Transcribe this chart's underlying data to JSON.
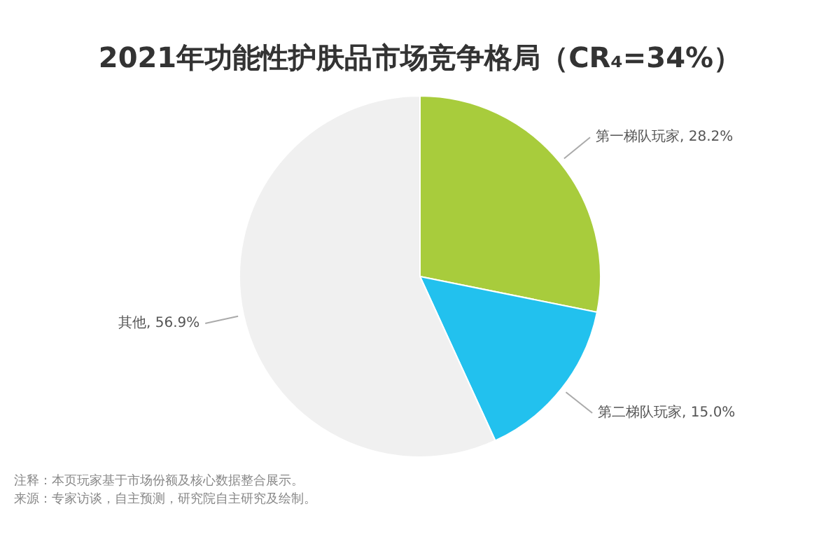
{
  "chart_data": {
    "type": "pie",
    "title": "2021年功能性护肤品市场竞争格局（CR₄=34%）",
    "categories": [
      "第一梯队玩家",
      "第二梯队玩家",
      "其他"
    ],
    "values": [
      28.2,
      15.0,
      56.9
    ],
    "value_labels": [
      "28.2%",
      "15.0%",
      "56.9%"
    ],
    "colors": [
      "#a8cc3c",
      "#22c1ee",
      "#f0f0f0"
    ],
    "legend": false,
    "annotations": [
      "注释：本页玩家基于市场份额及核心数据整合展示。",
      "来源：专家访谈，自主预测，研究院自主研究及绘制。"
    ]
  }
}
